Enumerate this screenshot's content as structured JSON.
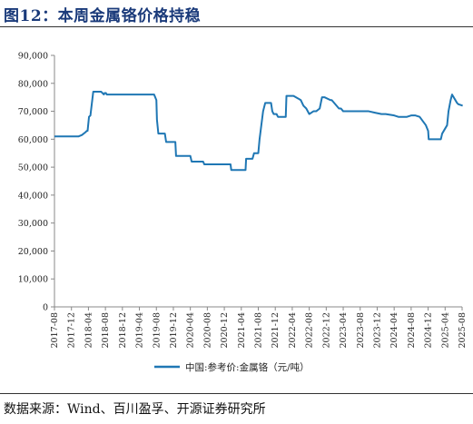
{
  "figure": {
    "title": "图12：本周金属铬价格持稳",
    "source": "数据来源：Wind、百川盈孚、开源证券研究所"
  },
  "chart_data": {
    "type": "line",
    "title": "图12：本周金属铬价格持稳",
    "xlabel": "",
    "ylabel": "",
    "ylim": [
      0,
      90000
    ],
    "yticks": [
      0,
      10000,
      20000,
      30000,
      40000,
      50000,
      60000,
      70000,
      80000,
      90000
    ],
    "ytick_labels": [
      "0",
      "10,000",
      "20,000",
      "30,000",
      "40,000",
      "50,000",
      "60,000",
      "70,000",
      "80,000",
      "90,000"
    ],
    "xlim": [
      "2017-08",
      "2025-08"
    ],
    "xtick_labels": [
      "2017-08",
      "2017-12",
      "2018-04",
      "2018-08",
      "2018-12",
      "2019-04",
      "2019-08",
      "2019-12",
      "2020-04",
      "2020-08",
      "2020-12",
      "2021-04",
      "2021-08",
      "2021-12",
      "2022-04",
      "2022-08",
      "2022-12",
      "2023-04",
      "2023-08",
      "2023-12",
      "2024-04",
      "2024-08",
      "2024-12",
      "2025-04",
      "2025-08"
    ],
    "grid": false,
    "legend_position": "bottom",
    "series": [
      {
        "name": "中国:参考价:金属铬（元/吨）",
        "color": "#1f77b4",
        "x": [
          "2017-08-01",
          "2018-01-20",
          "2018-02-15",
          "2018-03-10",
          "2018-03-20",
          "2018-03-25",
          "2018-04-05",
          "2018-04-15",
          "2018-05-05",
          "2018-07-01",
          "2018-07-20",
          "2018-07-25",
          "2018-08-05",
          "2018-08-10",
          "2019-06-01",
          "2019-07-15",
          "2019-08-01",
          "2019-08-05",
          "2019-08-15",
          "2019-10-01",
          "2019-10-10",
          "2019-12-15",
          "2019-12-20",
          "2020-04-01",
          "2020-04-10",
          "2020-07-01",
          "2020-07-10",
          "2021-01-15",
          "2021-01-20",
          "2021-05-01",
          "2021-05-05",
          "2021-06-20",
          "2021-07-01",
          "2021-08-01",
          "2021-08-10",
          "2021-08-20",
          "2021-09-05",
          "2021-09-20",
          "2021-11-01",
          "2021-11-10",
          "2021-11-20",
          "2021-12-10",
          "2021-12-20",
          "2022-02-15",
          "2022-02-20",
          "2022-04-10",
          "2022-05-15",
          "2022-06-01",
          "2022-06-20",
          "2022-07-10",
          "2022-08-01",
          "2022-09-01",
          "2022-09-20",
          "2022-10-15",
          "2022-11-01",
          "2022-11-20",
          "2023-01-01",
          "2023-01-10",
          "2023-03-01",
          "2023-03-15",
          "2023-04-01",
          "2023-06-01",
          "2023-10-01",
          "2023-11-15",
          "2024-01-01",
          "2024-02-01",
          "2024-04-01",
          "2024-05-01",
          "2024-07-01",
          "2024-08-01",
          "2024-09-01",
          "2024-10-01",
          "2024-11-15",
          "2024-12-01",
          "2024-12-05",
          "2025-03-01",
          "2025-03-10",
          "2025-04-15",
          "2025-04-25",
          "2025-05-10",
          "2025-05-20",
          "2025-06-25",
          "2025-07-05",
          "2025-08-05"
        ],
        "y": [
          61000,
          61000,
          61500,
          62500,
          63000,
          63000,
          68000,
          68500,
          77000,
          77000,
          76000,
          76500,
          76500,
          76000,
          76000,
          76000,
          74000,
          67000,
          62000,
          62000,
          59000,
          59000,
          54000,
          54000,
          52000,
          52000,
          51000,
          51000,
          49000,
          49000,
          53000,
          53000,
          55000,
          55000,
          60000,
          64000,
          70000,
          73000,
          73000,
          70000,
          69000,
          69000,
          68000,
          68000,
          75500,
          75500,
          74500,
          74000,
          72000,
          71000,
          69000,
          70000,
          70000,
          71000,
          75000,
          75000,
          74000,
          74000,
          71000,
          71000,
          70000,
          70000,
          70000,
          69500,
          69000,
          69000,
          68500,
          68000,
          68000,
          68500,
          68500,
          68000,
          65000,
          63000,
          60000,
          60000,
          62000,
          65000,
          70000,
          74000,
          76000,
          73000,
          72500,
          72000
        ]
      }
    ]
  }
}
